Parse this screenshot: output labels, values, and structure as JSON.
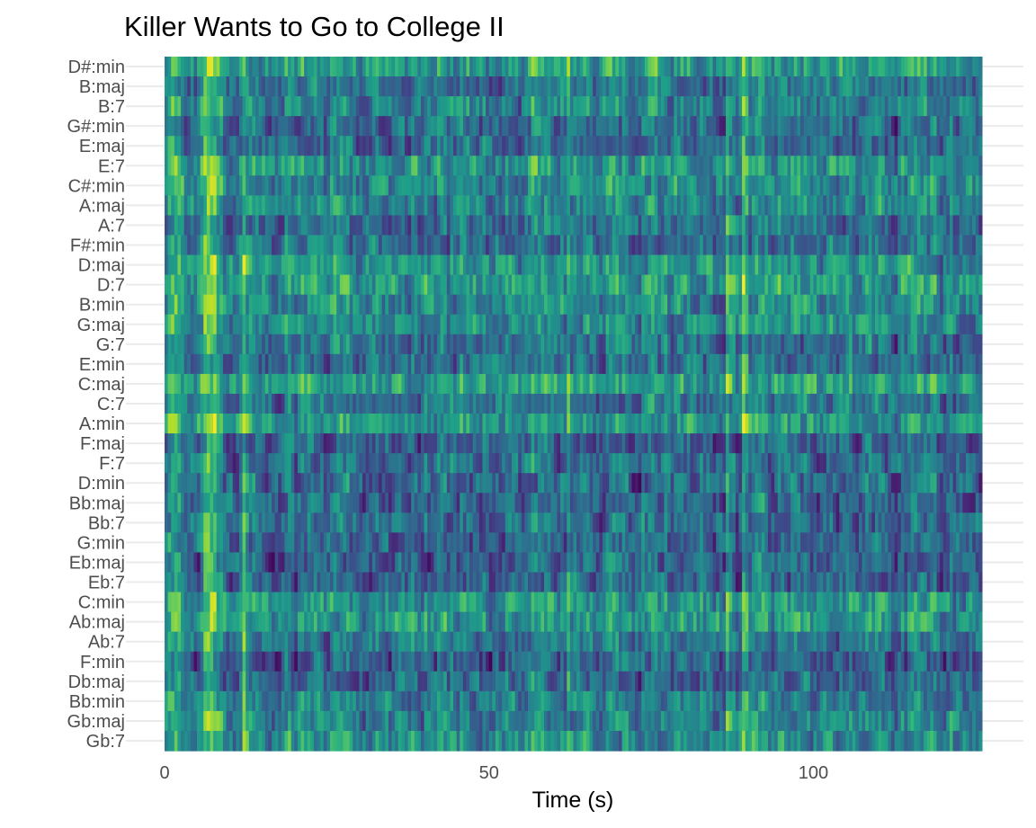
{
  "chart_data": {
    "type": "heatmap",
    "title": "Killer Wants to Go to College II",
    "xlabel": "Time (s)",
    "ylabel": "",
    "xlim": [
      0,
      126
    ],
    "x_ticks": [
      0,
      50,
      100
    ],
    "x_tick_labels": [
      "0",
      "50",
      "100"
    ],
    "y_categories": [
      "D#:min",
      "B:maj",
      "B:7",
      "G#:min",
      "E:maj",
      "E:7",
      "C#:min",
      "A:maj",
      "A:7",
      "F#:min",
      "D:maj",
      "D:7",
      "B:min",
      "G:maj",
      "G:7",
      "E:min",
      "C:maj",
      "C:7",
      "A:min",
      "F:maj",
      "F:7",
      "D:min",
      "Bb:maj",
      "Bb:7",
      "G:min",
      "Eb:maj",
      "Eb:7",
      "C:min",
      "Ab:maj",
      "Ab:7",
      "F:min",
      "Db:maj",
      "Bb:min",
      "Gb:maj",
      "Gb:7"
    ],
    "colormap": "viridis",
    "value_range": [
      0,
      1
    ],
    "time_step_s": 0.5,
    "grid": true,
    "legend": "none",
    "note": "Chord-likelihood per time frame; values estimated as a smoothly varying field with bright bands near 6-8s, 12s, 62s and 89s"
  }
}
